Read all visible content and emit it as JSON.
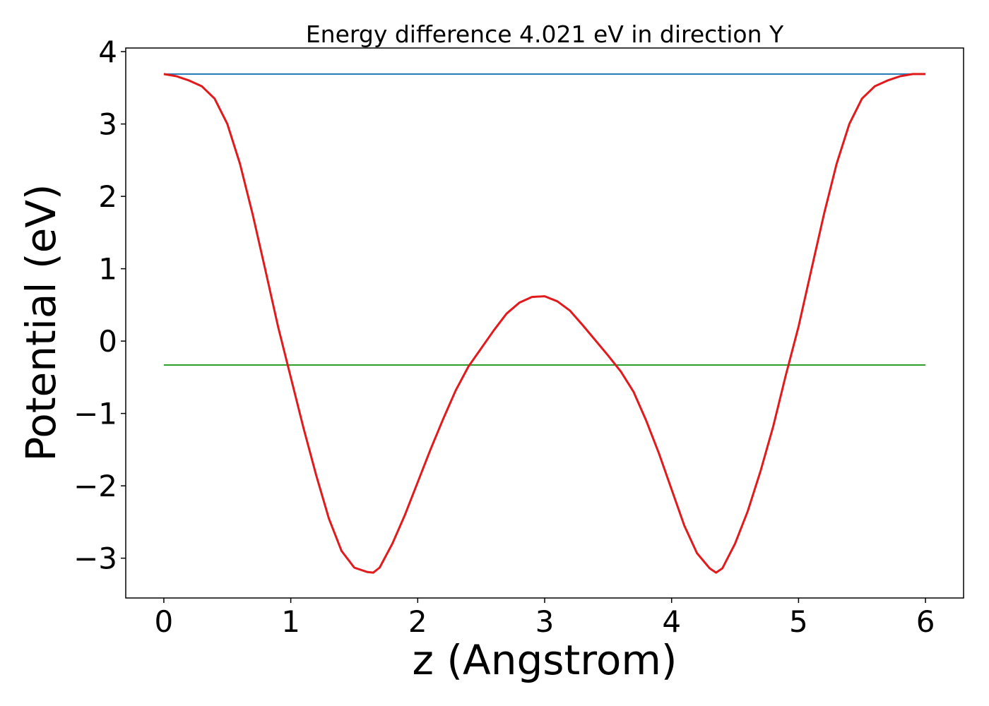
{
  "chart_data": {
    "type": "line",
    "title": "Energy difference 4.021 eV in direction Y",
    "xlabel": "z (Angstrom)",
    "ylabel": "Potential (eV)",
    "xlim": [
      -0.3,
      6.3
    ],
    "ylim": [
      -3.55,
      4.05
    ],
    "xticks": [
      0,
      1,
      2,
      3,
      4,
      5,
      6
    ],
    "yticks": [
      -3,
      -2,
      -1,
      0,
      1,
      2,
      3,
      4
    ],
    "xtick_labels": [
      "0",
      "1",
      "2",
      "3",
      "4",
      "5",
      "6"
    ],
    "ytick_labels": [
      "−3",
      "−2",
      "−1",
      "0",
      "1",
      "2",
      "3",
      "4"
    ],
    "grid": false,
    "series": [
      {
        "color": "#1f77b4",
        "x": [
          0,
          6
        ],
        "y": [
          3.69,
          3.69
        ]
      },
      {
        "color": "#2ca02c",
        "x": [
          0,
          6
        ],
        "y": [
          -0.33,
          -0.33
        ]
      },
      {
        "color": "#e31a1c",
        "x": [
          0,
          0.1,
          0.2,
          0.3,
          0.4,
          0.5,
          0.6,
          0.7,
          0.8,
          0.9,
          1.0,
          1.1,
          1.2,
          1.3,
          1.4,
          1.5,
          1.6,
          1.65,
          1.7,
          1.8,
          1.9,
          2.0,
          2.1,
          2.2,
          2.3,
          2.4,
          2.5,
          2.6,
          2.7,
          2.8,
          2.9,
          3.0,
          3.1,
          3.2,
          3.3,
          3.4,
          3.5,
          3.6,
          3.7,
          3.8,
          3.9,
          4.0,
          4.1,
          4.2,
          4.3,
          4.35,
          4.4,
          4.5,
          4.6,
          4.7,
          4.8,
          4.9,
          5.0,
          5.1,
          5.2,
          5.3,
          5.4,
          5.5,
          5.6,
          5.7,
          5.8,
          5.9,
          6.0
        ],
        "y": [
          3.69,
          3.66,
          3.6,
          3.52,
          3.35,
          3.0,
          2.45,
          1.75,
          0.98,
          0.2,
          -0.5,
          -1.2,
          -1.85,
          -2.45,
          -2.9,
          -3.13,
          -3.19,
          -3.2,
          -3.13,
          -2.8,
          -2.4,
          -1.95,
          -1.5,
          -1.08,
          -0.68,
          -0.35,
          -0.1,
          0.15,
          0.38,
          0.53,
          0.61,
          0.62,
          0.55,
          0.42,
          0.22,
          0.01,
          -0.2,
          -0.42,
          -0.7,
          -1.1,
          -1.55,
          -2.05,
          -2.55,
          -2.93,
          -3.14,
          -3.2,
          -3.14,
          -2.8,
          -2.35,
          -1.8,
          -1.18,
          -0.47,
          0.2,
          0.98,
          1.75,
          2.45,
          3.0,
          3.35,
          3.52,
          3.6,
          3.66,
          3.69,
          3.69
        ]
      }
    ]
  }
}
